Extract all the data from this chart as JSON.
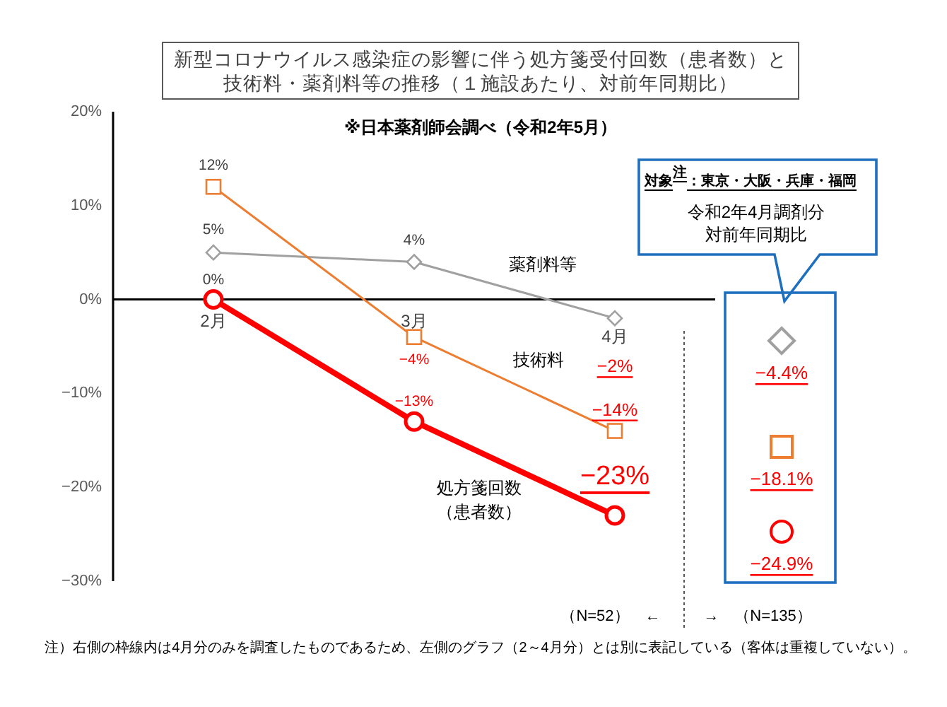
{
  "chart_data": [
    {
      "type": "line",
      "title": "新型コロナウイルス感染症の影響に伴う処方箋受付回数（患者数）と技術料・薬剤料等の推移（１施設あたり、対前年同期比）",
      "subtitle": "※日本薬剤師会調べ（令和2年5月）",
      "categories": [
        "2月",
        "3月",
        "4月"
      ],
      "series": [
        {
          "name": "薬剤料等",
          "color": "#a0a0a0",
          "marker": "diamond",
          "values": [
            5,
            4,
            -2
          ],
          "value_labels": [
            "5%",
            "4%",
            "−2%"
          ]
        },
        {
          "name": "技術料",
          "color": "#ed7d31",
          "marker": "square",
          "values": [
            12,
            -4,
            -14
          ],
          "value_labels": [
            "12%",
            "−4%",
            "−14%"
          ]
        },
        {
          "name": "処方箋回数（患者数）",
          "color": "#ff0000",
          "marker": "circle",
          "values": [
            0,
            -13,
            -23
          ],
          "value_labels": [
            "0%",
            "−13%",
            "−23%"
          ]
        }
      ],
      "ylim": [
        -30,
        20
      ],
      "yticks": [
        {
          "value": 20,
          "label": "20%"
        },
        {
          "value": 10,
          "label": "10%"
        },
        {
          "value": 0,
          "label": "0%"
        },
        {
          "value": -10,
          "label": "−10%"
        },
        {
          "value": -20,
          "label": "−20%"
        },
        {
          "value": -30,
          "label": "−30%"
        }
      ],
      "line_style": "solid",
      "annotations": [
        "（N=52）　←",
        "注）右側の枠線内は4月分のみを調査したものであるため、左側のグラフ（2～4月分）とは別に表記している（客体は重複していない）。"
      ]
    },
    {
      "type": "other",
      "title": "対象$^{注}$：東京・大阪・兵庫・福岡",
      "subtitle": "令和2年4月調剤分対前年同期比",
      "annotations": [
        "−4.4%",
        "−18.1%",
        "−24.9%",
        "→　（N=135）"
      ]
    }
  ]
}
